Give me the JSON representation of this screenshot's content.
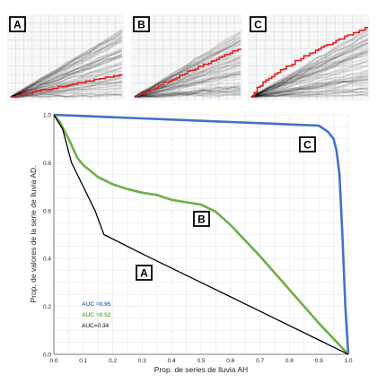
{
  "panels": [
    {
      "label": "A"
    },
    {
      "label": "B"
    },
    {
      "label": "C"
    }
  ],
  "colors": {
    "series_blue": "#4472c4",
    "series_green": "#70ad47",
    "series_black": "#000000",
    "panel_red": "#e02020"
  },
  "chart_data": {
    "type": "line",
    "xlabel": "Prop. de series de lluvia AH",
    "ylabel": "Prop. de valores de la serie de lluvia AD.",
    "xlim": [
      0,
      1.0
    ],
    "ylim": [
      0,
      1.0
    ],
    "x_ticks": [
      "0.0",
      "0.1",
      "0.2",
      "0.3",
      "0.4",
      "0.5",
      "0.6",
      "0.7",
      "0.8",
      "0.9",
      "1.0"
    ],
    "y_ticks": [
      "0.0",
      "0.2",
      "0.4",
      "0.6",
      "0.8",
      "1.0"
    ],
    "grid": true,
    "series": [
      {
        "label": "C",
        "auc_text": "AUC =0.95",
        "color": "#4472c4",
        "x": [
          0.0,
          0.1,
          0.2,
          0.3,
          0.4,
          0.5,
          0.6,
          0.7,
          0.8,
          0.9,
          0.93,
          0.95,
          0.96,
          0.97,
          0.98,
          0.99,
          1.0
        ],
        "y": [
          1.0,
          0.995,
          0.99,
          0.985,
          0.98,
          0.975,
          0.97,
          0.965,
          0.96,
          0.955,
          0.93,
          0.9,
          0.85,
          0.75,
          0.5,
          0.2,
          0.0
        ]
      },
      {
        "label": "B",
        "auc_text": "AUC =0.52",
        "color": "#70ad47",
        "x": [
          0.0,
          0.02,
          0.05,
          0.08,
          0.1,
          0.15,
          0.2,
          0.25,
          0.3,
          0.35,
          0.4,
          0.45,
          0.5,
          0.55,
          0.6,
          0.7,
          0.8,
          0.9,
          1.0
        ],
        "y": [
          1.0,
          0.97,
          0.9,
          0.82,
          0.79,
          0.74,
          0.71,
          0.69,
          0.675,
          0.665,
          0.645,
          0.635,
          0.625,
          0.595,
          0.54,
          0.41,
          0.27,
          0.13,
          0.0
        ]
      },
      {
        "label": "A",
        "auc_text": "AUC=0.34",
        "color": "#000000",
        "x": [
          0.0,
          0.03,
          0.06,
          0.1,
          0.14,
          0.17,
          0.3,
          0.5,
          0.7,
          0.9,
          1.0
        ],
        "y": [
          1.0,
          0.94,
          0.8,
          0.7,
          0.6,
          0.5,
          0.42,
          0.3,
          0.18,
          0.06,
          0.0
        ]
      }
    ]
  }
}
